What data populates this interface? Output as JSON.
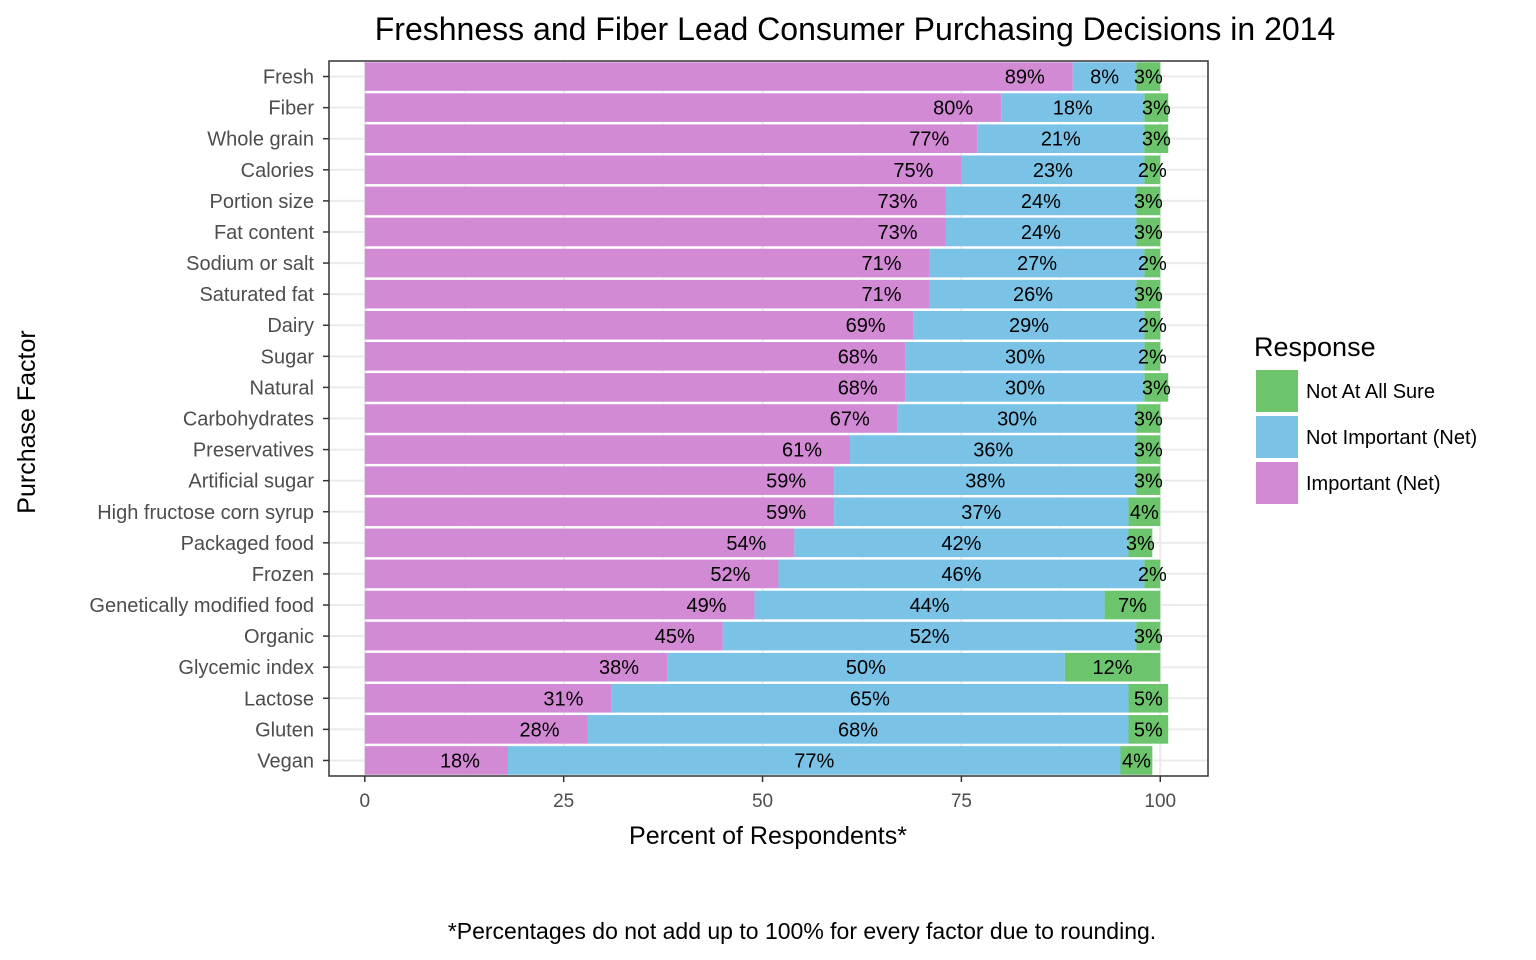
{
  "chart_data": {
    "type": "bar",
    "orientation": "horizontal",
    "stacked": true,
    "title": "Freshness and Fiber Lead Consumer Purchasing Decisions in 2014",
    "xlabel": "Percent of Respondents*",
    "ylabel": "Purchase Factor",
    "xlim": [
      -4.5,
      106
    ],
    "xticks": [
      0,
      25,
      50,
      75,
      100
    ],
    "grid": true,
    "legend_position": "right",
    "legend_title": "Response",
    "caption": "*Percentages do not add up to 100% for every factor due to rounding.",
    "categories": [
      "Fresh",
      "Fiber",
      "Whole grain",
      "Calories",
      "Portion size",
      "Fat content",
      "Sodium or salt",
      "Saturated fat",
      "Dairy",
      "Sugar",
      "Natural",
      "Carbohydrates",
      "Preservatives",
      "Artificial sugar",
      "High fructose corn syrup",
      "Packaged food",
      "Frozen",
      "Genetically modified food",
      "Organic",
      "Glycemic index",
      "Lactose",
      "Gluten",
      "Vegan"
    ],
    "series": [
      {
        "name": "Important (Net)",
        "color": "#D28AD4",
        "values": [
          89,
          80,
          77,
          75,
          73,
          73,
          71,
          71,
          69,
          68,
          68,
          67,
          61,
          59,
          59,
          54,
          52,
          49,
          45,
          38,
          31,
          28,
          18
        ],
        "labels": [
          "89%",
          "80%",
          "77%",
          "75%",
          "73%",
          "73%",
          "71%",
          "71%",
          "69%",
          "68%",
          "68%",
          "67%",
          "61%",
          "59%",
          "59%",
          "54%",
          "52%",
          "49%",
          "45%",
          "38%",
          "31%",
          "28%",
          "18%"
        ]
      },
      {
        "name": "Not Important (Net)",
        "color": "#7AC2E6",
        "values": [
          8,
          18,
          21,
          23,
          24,
          24,
          27,
          26,
          29,
          30,
          30,
          30,
          36,
          38,
          37,
          42,
          46,
          44,
          52,
          50,
          65,
          68,
          77
        ],
        "labels": [
          "8%",
          "18%",
          "21%",
          "23%",
          "24%",
          "24%",
          "27%",
          "26%",
          "29%",
          "30%",
          "30%",
          "30%",
          "36%",
          "38%",
          "37%",
          "42%",
          "46%",
          "44%",
          "52%",
          "50%",
          "65%",
          "68%",
          "77%"
        ]
      },
      {
        "name": "Not At All Sure",
        "color": "#6CC56C",
        "values": [
          3,
          3,
          3,
          2,
          3,
          3,
          2,
          3,
          2,
          2,
          3,
          3,
          3,
          3,
          4,
          3,
          2,
          7,
          3,
          12,
          5,
          5,
          4
        ],
        "labels": [
          "3%",
          "3%",
          "3%",
          "2%",
          "3%",
          "3%",
          "2%",
          "3%",
          "2%",
          "2%",
          "3%",
          "3%",
          "3%",
          "3%",
          "4%",
          "3%",
          "2%",
          "7%",
          "3%",
          "12%",
          "5%",
          "5%",
          "4%"
        ]
      }
    ],
    "legend_order": [
      "Not At All Sure",
      "Not Important (Net)",
      "Important (Net)"
    ]
  }
}
